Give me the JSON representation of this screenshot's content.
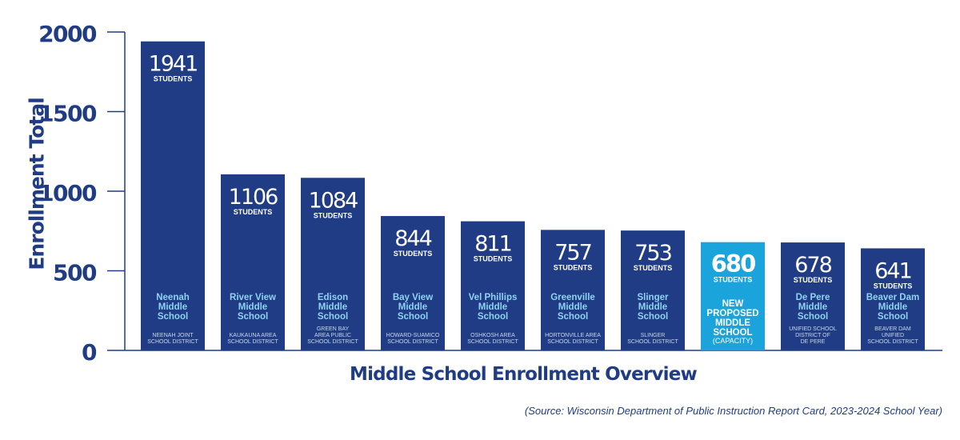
{
  "chart_data": {
    "type": "bar",
    "ylabel": "Enrollment Total",
    "xlabel": "Middle School Enrollment Overview",
    "source": "(Source: Wisconsin Department of Public Instruction Report Card, 2023-2024 School Year)",
    "ylim": [
      0,
      2000
    ],
    "yticks": [
      "0",
      "500",
      "1000",
      "1500",
      "2000"
    ],
    "value_unit": "STUDENTS",
    "colors": {
      "bar": "#1f3c85",
      "highlight": "#1ba3dc",
      "school_name": "#8fd3f4",
      "district": "#c9d6ee",
      "axis": "#1f3c85"
    },
    "bars": [
      {
        "value": 1941,
        "name": [
          "Neenah",
          "Middle",
          "School"
        ],
        "district": [
          "NEENAH JOINT",
          "SCHOOL DISTRICT"
        ]
      },
      {
        "value": 1106,
        "name": [
          "River View",
          "Middle",
          "School"
        ],
        "district": [
          "KAUKAUNA AREA",
          "SCHOOL DISTRICT"
        ]
      },
      {
        "value": 1084,
        "name": [
          "Edison",
          "Middle",
          "School"
        ],
        "district": [
          "GREEN BAY",
          "AREA PUBLIC",
          "SCHOOL DISTRICT"
        ]
      },
      {
        "value": 844,
        "name": [
          "Bay View",
          "Middle",
          "School"
        ],
        "district": [
          "HOWARD-SUAMICO",
          "SCHOOL DISTRICT"
        ]
      },
      {
        "value": 811,
        "name": [
          "Vel Phillips",
          "Middle",
          "School"
        ],
        "district": [
          "OSHKOSH AREA",
          "SCHOOL DISTRICT"
        ]
      },
      {
        "value": 757,
        "name": [
          "Greenville",
          "Middle",
          "School"
        ],
        "district": [
          "HORTONVILLE AREA",
          "SCHOOL DISTRICT"
        ]
      },
      {
        "value": 753,
        "name": [
          "Slinger",
          "Middle",
          "School"
        ],
        "district": [
          "SLINGER",
          "SCHOOL DISTRICT"
        ]
      },
      {
        "value": 680,
        "name": [
          "NEW",
          "PROPOSED",
          "MIDDLE",
          "SCHOOL"
        ],
        "district": [
          "(CAPACITY)"
        ],
        "highlight": true
      },
      {
        "value": 678,
        "name": [
          "De Pere",
          "Middle",
          "School"
        ],
        "district": [
          "UNIFIED SCHOOL",
          "DISTRICT OF",
          "DE PERE"
        ]
      },
      {
        "value": 641,
        "name": [
          "Beaver Dam",
          "Middle",
          "School"
        ],
        "district": [
          "BEAVER DAM",
          "UNIFIED",
          "SCHOOL DISTRICT"
        ]
      }
    ]
  }
}
